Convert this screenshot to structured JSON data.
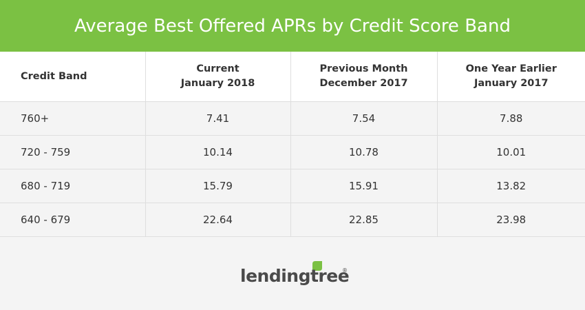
{
  "header": {
    "title": "Average Best Offered APRs by Credit Score Band"
  },
  "table": {
    "headers": [
      [
        "Credit Band"
      ],
      [
        "Current",
        "January 2018"
      ],
      [
        "Previous Month",
        "December 2017"
      ],
      [
        "One Year Earlier",
        "January 2017"
      ]
    ],
    "rows": [
      [
        "760+",
        7.41,
        7.54,
        7.88
      ],
      [
        "720 - 759",
        10.14,
        10.78,
        10.01
      ],
      [
        "680 - 719",
        15.79,
        15.91,
        13.82
      ],
      [
        "640 - 679",
        22.64,
        22.85,
        23.98
      ]
    ]
  },
  "footer": {
    "brand": "lendingtree",
    "trademark": "®"
  }
}
